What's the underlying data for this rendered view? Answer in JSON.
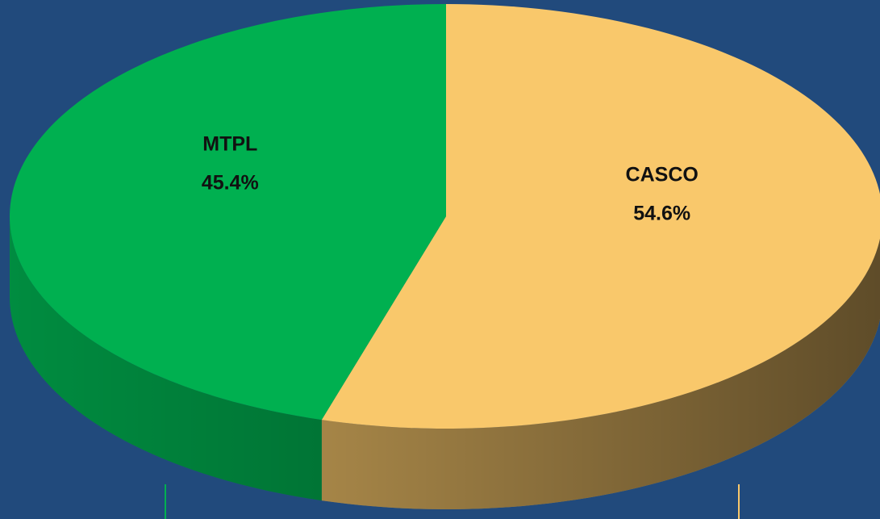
{
  "chart_data": {
    "type": "pie3d",
    "categories": [
      "CASCO",
      "MTPL"
    ],
    "values": [
      54.6,
      45.4
    ],
    "value_labels": [
      "54.6%",
      "45.4%"
    ],
    "colors": [
      "#f9c86b",
      "#00b050"
    ]
  }
}
